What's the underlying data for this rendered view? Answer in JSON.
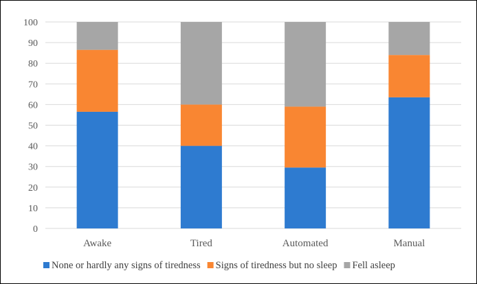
{
  "chart_data": {
    "type": "bar",
    "stacked": true,
    "categories": [
      "Awake",
      "Tired",
      "Automated",
      "Manual"
    ],
    "series": [
      {
        "name": "None or hardly any signs of tiredness",
        "color": "#2e7bd0",
        "values": [
          56.5,
          40,
          29.5,
          63.5
        ]
      },
      {
        "name": "Signs of tiredness but no sleep",
        "color": "#f98632",
        "values": [
          30,
          20,
          29.5,
          20.5
        ]
      },
      {
        "name": "Fell asleep",
        "color": "#a6a6a6",
        "values": [
          13.5,
          40,
          41,
          16
        ]
      }
    ],
    "ylim": [
      0,
      100
    ],
    "yticks": [
      0,
      10,
      20,
      30,
      40,
      50,
      60,
      70,
      80,
      90,
      100
    ],
    "grid": true,
    "legend_position": "bottom",
    "title": "",
    "xlabel": "",
    "ylabel": ""
  }
}
